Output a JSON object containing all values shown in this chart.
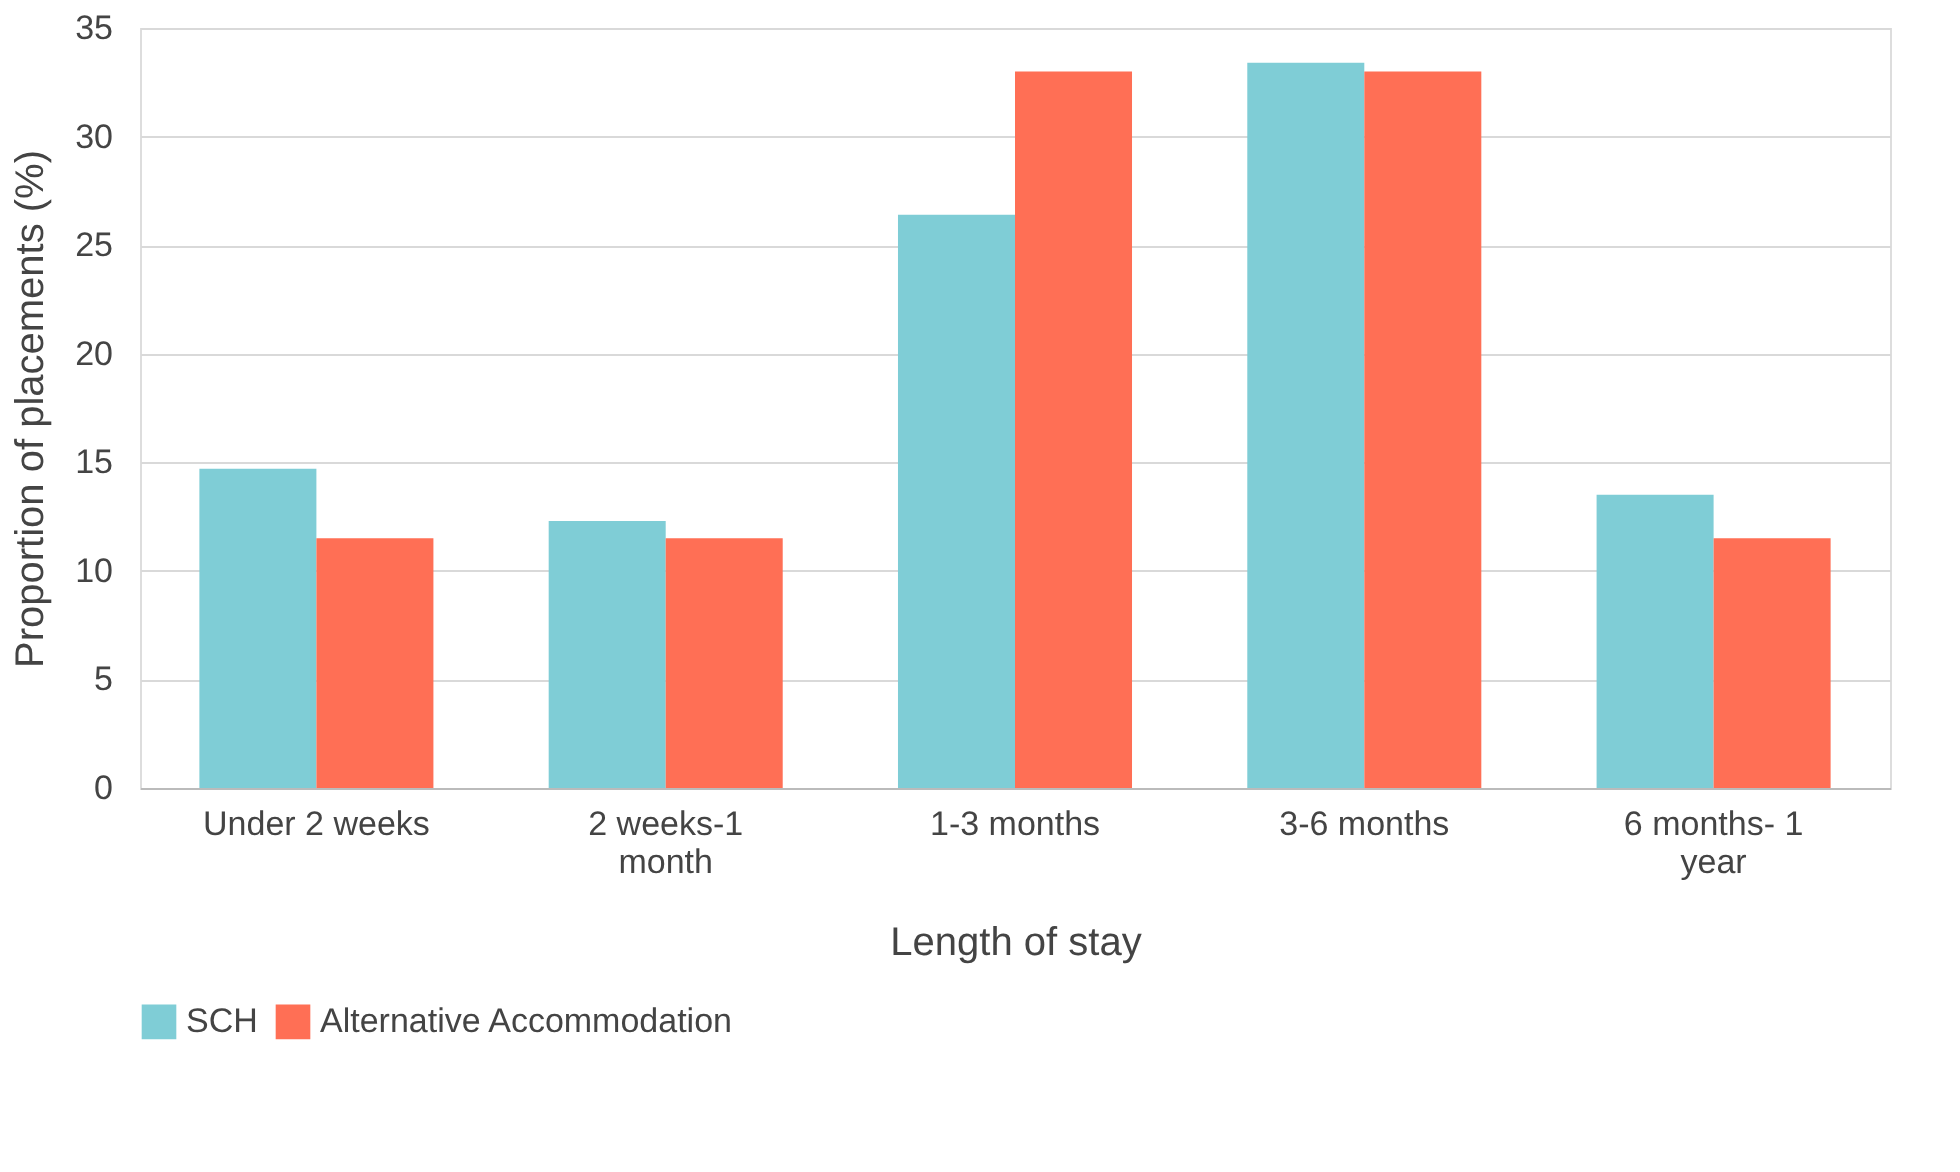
{
  "chart_data": {
    "type": "bar",
    "xlabel": "Length of stay",
    "ylabel": "Proportion of placements (%)",
    "categories": [
      "Under 2 weeks",
      "2 weeks-1 month",
      "1-3 months",
      "3-6 months",
      "6 months- 1 year"
    ],
    "series": [
      {
        "name": "SCH",
        "color": "#7fcdd6",
        "values": [
          14.7,
          12.3,
          26.4,
          33.4,
          13.5
        ]
      },
      {
        "name": "Alternative Accommodation",
        "color": "#ff6f55",
        "values": [
          11.5,
          11.5,
          33.0,
          33.0,
          11.5
        ]
      }
    ],
    "ylim": [
      0,
      35
    ],
    "yticks": [
      0,
      5,
      10,
      15,
      20,
      25,
      30,
      35
    ],
    "grid": "y",
    "legend": "bottom"
  }
}
